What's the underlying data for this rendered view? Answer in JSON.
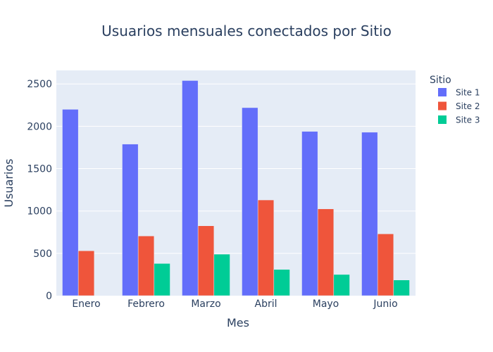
{
  "chart_data": {
    "type": "bar",
    "title": "Usuarios mensuales conectados por Sitio",
    "xlabel": "Mes",
    "ylabel": "Usuarios",
    "categories": [
      "Enero",
      "Febrero",
      "Marzo",
      "Abril",
      "Mayo",
      "Junio"
    ],
    "ylim": [
      0,
      2660
    ],
    "yticks": [
      0,
      500,
      1000,
      1500,
      2000,
      2500
    ],
    "grid": true,
    "legend_title": "Sitio",
    "legend_position": "top-right",
    "background_color": "#E5ECF6",
    "series": [
      {
        "name": "Site 1",
        "color": "#636EFA",
        "values": [
          2200,
          1790,
          2540,
          2220,
          1940,
          1930
        ]
      },
      {
        "name": "Site 2",
        "color": "#EF553B",
        "values": [
          530,
          705,
          825,
          1130,
          1025,
          730
        ]
      },
      {
        "name": "Site 3",
        "color": "#00CC96",
        "values": [
          0,
          380,
          490,
          310,
          250,
          185
        ]
      }
    ]
  }
}
